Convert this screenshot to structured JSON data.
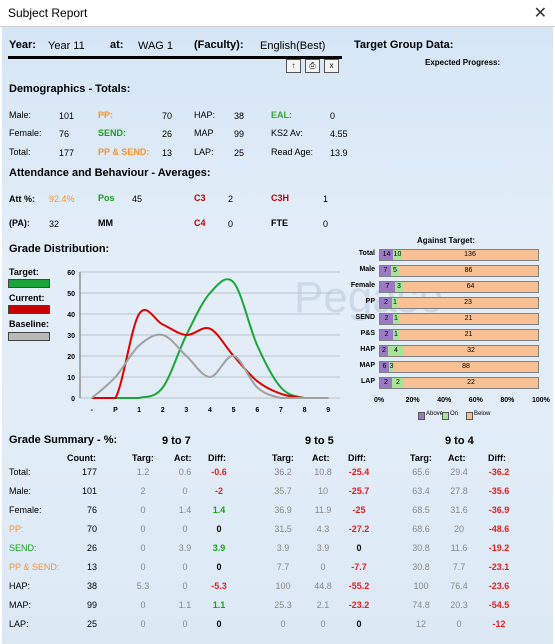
{
  "window": {
    "title": "Subject Report",
    "close_glyph": "✕"
  },
  "header": {
    "year_label": "Year:",
    "year_value": "Year 11",
    "at_label": "at:",
    "at_value": "WAG 1",
    "faculty_label": "(Faculty):",
    "faculty_value": "English(Best)",
    "target_group_label": "Target Group Data:",
    "expected_progress_label": "Expected Progress:",
    "buttons": [
      "↑",
      "⎙",
      "x"
    ]
  },
  "demographics": {
    "heading": "Demographics - Totals:",
    "rows": [
      [
        {
          "l": "Male:",
          "v": "101"
        },
        {
          "l": "PP:",
          "v": "70",
          "c": "orange"
        },
        {
          "l": "HAP:",
          "v": "38"
        },
        {
          "l": "EAL:",
          "v": "0",
          "c": "lgreen"
        }
      ],
      [
        {
          "l": "Female:",
          "v": "76"
        },
        {
          "l": "SEND:",
          "v": "26",
          "c": "green"
        },
        {
          "l": "MAP",
          "v": "99"
        },
        {
          "l": "KS2 Av:",
          "v": "4.55"
        }
      ],
      [
        {
          "l": "Total:",
          "v": "177"
        },
        {
          "l": "PP & SEND:",
          "v": "13",
          "c": "orange"
        },
        {
          "l": "LAP:",
          "v": "25"
        },
        {
          "l": "Read Age:",
          "v": "13.9"
        }
      ]
    ]
  },
  "attendance": {
    "heading": "Attendance and Behaviour - Averages:",
    "att_label": "Att %:",
    "att_value": "92.4%",
    "pos_label": "Pos",
    "pos_value": "45",
    "c3_label": "C3",
    "c3_value": "2",
    "c3h_label": "C3H",
    "c3h_value": "1",
    "pa_label": "(PA):",
    "pa_value": "32",
    "mm_label": "MM",
    "c4_label": "C4",
    "c4_value": "0",
    "fte_label": "FTE",
    "fte_value": "0"
  },
  "grade_distribution": {
    "heading": "Grade Distribution:",
    "legend": {
      "target": "Target:",
      "current": "Current:",
      "baseline": "Baseline:"
    },
    "colors": {
      "target": "#1aa53a",
      "current": "#e00000",
      "baseline": "#a0a0a0"
    },
    "watermark": "Pegaso"
  },
  "chart_data": {
    "type": "line",
    "categories": [
      "-",
      "P",
      "1",
      "2",
      "3",
      "4",
      "5",
      "6",
      "7",
      "8",
      "9"
    ],
    "ylim": [
      0,
      60
    ],
    "yticks": [
      "0",
      "10",
      "20",
      "30",
      "40",
      "50",
      "60"
    ],
    "series": [
      {
        "name": "Target",
        "values": [
          0,
          0,
          0,
          5,
          30,
          50,
          55,
          25,
          5,
          0,
          0
        ],
        "color": "#1aa53a"
      },
      {
        "name": "Current",
        "values": [
          0,
          0,
          40,
          35,
          30,
          33,
          20,
          8,
          2,
          0,
          0
        ],
        "color": "#e00000"
      },
      {
        "name": "Baseline",
        "values": [
          0,
          10,
          25,
          30,
          20,
          10,
          20,
          5,
          0,
          0,
          0
        ],
        "color": "#a0a0a0"
      }
    ]
  },
  "against_target": {
    "title": "Against Target:",
    "rows": [
      {
        "label": "Total",
        "above": "14",
        "on": "10",
        "below": "136",
        "pa": 0.085,
        "po": 0.06
      },
      {
        "label": "Male",
        "above": "7",
        "on": "5",
        "below": "86",
        "pa": 0.07,
        "po": 0.05
      },
      {
        "label": "Female",
        "above": "7",
        "on": "3",
        "below": "64",
        "pa": 0.095,
        "po": 0.05
      },
      {
        "label": "PP",
        "above": "2",
        "on": "1",
        "below": "23",
        "pa": 0.075,
        "po": 0.04
      },
      {
        "label": "SEND",
        "above": "2",
        "on": "1",
        "below": "21",
        "pa": 0.08,
        "po": 0.04
      },
      {
        "label": "P&S",
        "above": "2",
        "on": "1",
        "below": "21",
        "pa": 0.08,
        "po": 0.04
      },
      {
        "label": "HAP",
        "above": "2",
        "on": "4",
        "below": "32",
        "pa": 0.05,
        "po": 0.1
      },
      {
        "label": "MAP",
        "above": "6",
        "on": "3",
        "below": "88",
        "pa": 0.06,
        "po": 0.03
      },
      {
        "label": "LAP",
        "above": "2",
        "on": "2",
        "below": "22",
        "pa": 0.075,
        "po": 0.075
      }
    ],
    "axis": [
      "0%",
      "20%",
      "40%",
      "60%",
      "80%",
      "100%"
    ],
    "legend": [
      "Above",
      "On",
      "Below"
    ]
  },
  "grade_summary": {
    "heading": "Grade Summary - %:",
    "groups": [
      "9 to 7",
      "9 to 5",
      "9 to 4"
    ],
    "count_header": "Count:",
    "sub_headers": [
      "Targ:",
      "Act:",
      "Diff:"
    ],
    "rows": [
      {
        "label": "Total:",
        "lc": "",
        "count": "177",
        "v": [
          [
            "1.2",
            "0.6",
            "-0.6",
            "r"
          ],
          [
            "36.2",
            "10.8",
            "-25.4",
            "r"
          ],
          [
            "65.6",
            "29.4",
            "-36.2",
            "r"
          ]
        ]
      },
      {
        "label": "Male:",
        "lc": "",
        "count": "101",
        "v": [
          [
            "2",
            "0",
            "-2",
            "r"
          ],
          [
            "35.7",
            "10",
            "-25.7",
            "r"
          ],
          [
            "63.4",
            "27.8",
            "-35.6",
            "r"
          ]
        ]
      },
      {
        "label": "Female:",
        "lc": "",
        "count": "76",
        "v": [
          [
            "0",
            "1.4",
            "1.4",
            "g"
          ],
          [
            "36.9",
            "11.9",
            "-25",
            "r"
          ],
          [
            "68.5",
            "31.6",
            "-36.9",
            "r"
          ]
        ]
      },
      {
        "label": "PP:",
        "lc": "orange",
        "count": "70",
        "v": [
          [
            "0",
            "0",
            "0",
            "k"
          ],
          [
            "31.5",
            "4.3",
            "-27.2",
            "r"
          ],
          [
            "68.6",
            "20",
            "-48.6",
            "r"
          ]
        ]
      },
      {
        "label": "SEND:",
        "lc": "green",
        "count": "26",
        "v": [
          [
            "0",
            "3.9",
            "3.9",
            "g"
          ],
          [
            "3.9",
            "3.9",
            "0",
            "k"
          ],
          [
            "30.8",
            "11.6",
            "-19.2",
            "r"
          ]
        ]
      },
      {
        "label": "PP & SEND:",
        "lc": "orange",
        "count": "13",
        "v": [
          [
            "0",
            "0",
            "0",
            "k"
          ],
          [
            "7.7",
            "0",
            "-7.7",
            "r"
          ],
          [
            "30.8",
            "7.7",
            "-23.1",
            "r"
          ]
        ]
      },
      {
        "label": "HAP:",
        "lc": "",
        "count": "38",
        "v": [
          [
            "5.3",
            "0",
            "-5.3",
            "r"
          ],
          [
            "100",
            "44.8",
            "-55.2",
            "r"
          ],
          [
            "100",
            "76.4",
            "-23.6",
            "r"
          ]
        ]
      },
      {
        "label": "MAP:",
        "lc": "",
        "count": "99",
        "v": [
          [
            "0",
            "1.1",
            "1.1",
            "g"
          ],
          [
            "25.3",
            "2.1",
            "-23.2",
            "r"
          ],
          [
            "74.8",
            "20.3",
            "-54.5",
            "r"
          ]
        ]
      },
      {
        "label": "LAP:",
        "lc": "",
        "count": "25",
        "v": [
          [
            "0",
            "0",
            "0",
            "k"
          ],
          [
            "0",
            "0",
            "0",
            "k"
          ],
          [
            "12",
            "0",
            "-12",
            "r"
          ]
        ]
      }
    ]
  }
}
